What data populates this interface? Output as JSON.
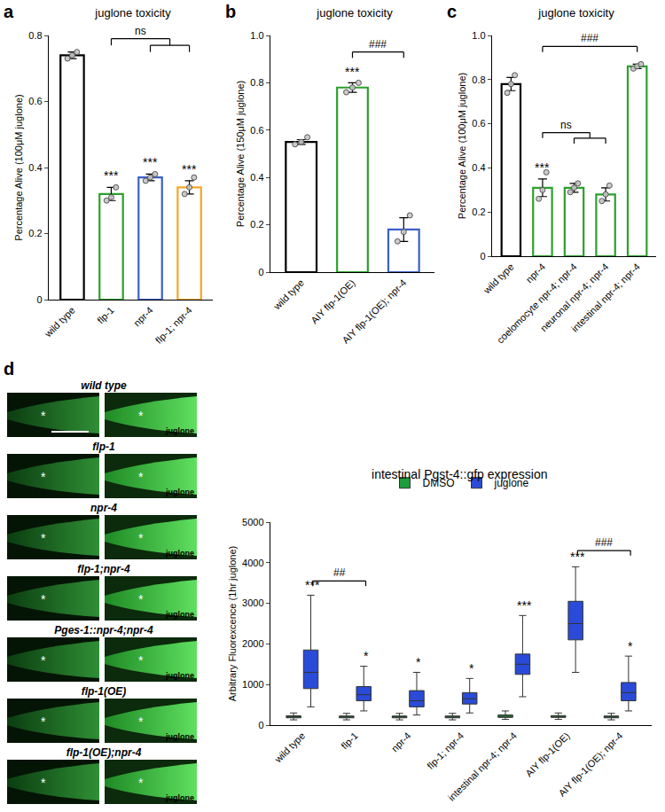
{
  "chart_data": [
    {
      "panel": "a",
      "type": "bar",
      "title": "juglone toxicity",
      "y_label": "Percentage Alive (100μM juglone)",
      "categories": [
        "wild type",
        "flp-1",
        "npr-4",
        "flp-1; npr-4"
      ],
      "values": [
        0.74,
        0.32,
        0.37,
        0.34
      ],
      "errors": [
        0.01,
        0.02,
        0.01,
        0.02
      ],
      "points": [
        [
          0.73,
          0.74,
          0.75
        ],
        [
          0.3,
          0.31,
          0.34
        ],
        [
          0.36,
          0.37,
          0.38
        ],
        [
          0.32,
          0.34,
          0.37
        ]
      ],
      "colors": [
        "#000000",
        "#2ca02c",
        "#3b5fc8",
        "#f5a623"
      ],
      "significance": [
        null,
        "***",
        "***",
        "***"
      ],
      "brackets": [
        {
          "from": "flp-1",
          "to": [
            "npr-4",
            "flp-1; npr-4"
          ],
          "y": 0.79,
          "text": "ns"
        }
      ],
      "ylim": [
        0,
        0.8
      ],
      "yticks": [
        0,
        0.2,
        0.4,
        0.6,
        0.8
      ],
      "grid": false
    },
    {
      "panel": "b",
      "type": "bar",
      "title": "juglone toxicity",
      "y_label": "Percentage Alive (150μM juglone)",
      "categories": [
        "wild type",
        "AIY flp-1(OE)",
        "AIY flp-1(OE); npr-4"
      ],
      "values": [
        0.55,
        0.78,
        0.18
      ],
      "errors": [
        0.01,
        0.02,
        0.05
      ],
      "points": [
        [
          0.54,
          0.55,
          0.57
        ],
        [
          0.76,
          0.78,
          0.8
        ],
        [
          0.13,
          0.17,
          0.24
        ]
      ],
      "colors": [
        "#000000",
        "#2ca02c",
        "#3b5fc8"
      ],
      "significance": [
        null,
        "***",
        null
      ],
      "brackets": [
        {
          "from": "AIY flp-1(OE)",
          "to": [
            "AIY flp-1(OE); npr-4"
          ],
          "y": 0.93,
          "text": "###"
        }
      ],
      "ylim": [
        0,
        1.0
      ],
      "yticks": [
        0,
        0.2,
        0.4,
        0.6,
        0.8,
        {
          "value": 1.0,
          "label": "1.0"
        }
      ],
      "grid": false
    },
    {
      "panel": "c",
      "type": "bar",
      "title": "juglone toxicity",
      "y_label": "Percentage Alive (100μM juglone)",
      "categories": [
        "wild type",
        "npr-4",
        "coelomocyte npr-4; npr-4",
        "neuronal npr-4; npr-4",
        "intestinal npr-4; npr-4"
      ],
      "values": [
        0.78,
        0.31,
        0.31,
        0.28,
        0.86
      ],
      "errors": [
        0.03,
        0.04,
        0.02,
        0.03,
        0.01
      ],
      "points": [
        [
          0.74,
          0.78,
          0.82
        ],
        [
          0.26,
          0.3,
          0.38
        ],
        [
          0.29,
          0.31,
          0.33
        ],
        [
          0.25,
          0.28,
          0.32
        ],
        [
          0.85,
          0.86,
          0.87
        ]
      ],
      "colors": [
        "#000000",
        "#2ca02c",
        "#2ca02c",
        "#2ca02c",
        "#2ca02c"
      ],
      "significance": [
        null,
        "***",
        null,
        null,
        null
      ],
      "brackets": [
        {
          "from": "npr-4",
          "to": [
            "coelomocyte npr-4; npr-4",
            "neuronal npr-4; npr-4"
          ],
          "y": 0.56,
          "text": "ns"
        },
        {
          "from": "npr-4",
          "to": [
            "intestinal npr-4; npr-4"
          ],
          "y": 0.95,
          "text": "###"
        }
      ],
      "ylim": [
        0,
        1.0
      ],
      "yticks": [
        0,
        0.2,
        0.4,
        0.6,
        0.8,
        {
          "value": 1.0,
          "label": "1.0"
        }
      ],
      "grid": false
    },
    {
      "panel": "d",
      "type": "box",
      "title": "intestinal Pgst-4::gfp expression",
      "y_label": "Arbitrary Fluorexcence (1hr juglone)",
      "categories": [
        "wild type",
        "flp-1",
        "npr-4",
        "flp-1; npr-4",
        "intestinal npr-4; npr-4",
        "AIY flp-1(OE)",
        "AIY flp-1(OE); npr-4"
      ],
      "series": [
        {
          "name": "DMSO",
          "color": "#1e9b3a",
          "q1": [
            180,
            180,
            180,
            180,
            190,
            190,
            180
          ],
          "median": [
            205,
            200,
            200,
            200,
            215,
            210,
            200
          ],
          "q3": [
            230,
            225,
            225,
            225,
            250,
            235,
            225
          ],
          "lower": [
            130,
            130,
            130,
            130,
            140,
            140,
            130
          ],
          "upper": [
            300,
            290,
            290,
            290,
            350,
            300,
            290
          ]
        },
        {
          "name": "juglone",
          "color": "#2a4bd7",
          "q1": [
            900,
            600,
            450,
            520,
            1250,
            2100,
            600
          ],
          "median": [
            1300,
            750,
            600,
            650,
            1500,
            2500,
            800
          ],
          "q3": [
            1850,
            950,
            850,
            800,
            1750,
            3050,
            1050
          ],
          "lower": [
            450,
            350,
            250,
            300,
            700,
            1300,
            350
          ],
          "upper": [
            3200,
            1450,
            1300,
            1150,
            2700,
            3900,
            1700
          ],
          "significance": [
            "***",
            "*",
            "*",
            "*",
            "***",
            "***",
            "*"
          ]
        }
      ],
      "brackets": [
        {
          "from": "wild type",
          "to": [
            "flp-1"
          ],
          "y": 3550,
          "text": "##"
        },
        {
          "from": "AIY flp-1(OE)",
          "to": [
            "AIY flp-1(OE); npr-4"
          ],
          "y": 4300,
          "text": "###"
        }
      ],
      "ylim": [
        0,
        5000
      ],
      "yticks": [
        0,
        1000,
        2000,
        3000,
        4000,
        5000
      ],
      "grid": false,
      "legend": "top"
    }
  ],
  "micrographs": {
    "rows": [
      "wild type",
      "flp-1",
      "npr-4",
      "flp-1;npr-4",
      "Pges-1::npr-4;npr-4",
      "flp-1(OE)",
      "flp-1(OE);npr-4"
    ],
    "treated_label": "juglone",
    "mark_text": "*"
  }
}
